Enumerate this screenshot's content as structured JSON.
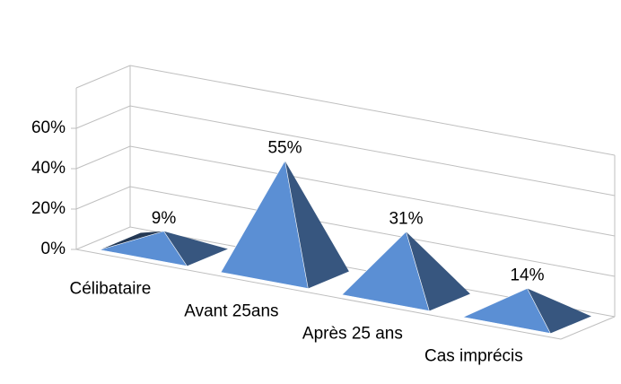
{
  "chart_data": {
    "type": "pyramid3d",
    "categories": [
      "Célibataire",
      "Avant 25ans",
      "Après 25 ans",
      "Cas imprécis"
    ],
    "values": [
      9,
      55,
      31,
      14
    ],
    "value_labels": [
      "9%",
      "55%",
      "31%",
      "14%"
    ],
    "color": "#5b8fd4",
    "ylim": [
      0,
      80
    ],
    "yticks": [
      {
        "value": 0,
        "label": "0%"
      },
      {
        "value": 20,
        "label": "20%"
      },
      {
        "value": 40,
        "label": "40%"
      },
      {
        "value": 60,
        "label": "60%"
      }
    ],
    "grid": true
  }
}
